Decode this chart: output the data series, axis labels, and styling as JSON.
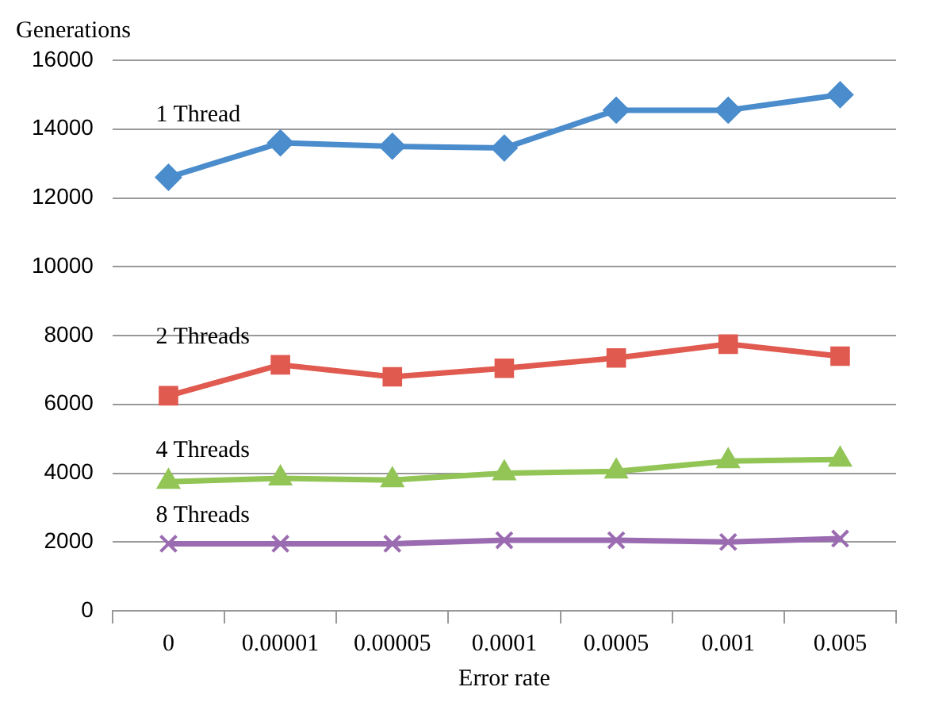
{
  "chart_data": {
    "type": "line",
    "xlabel": "Error rate",
    "ylabel": "Generations",
    "categories": [
      "0",
      "0.00001",
      "0.00005",
      "0.0001",
      "0.0005",
      "0.001",
      "0.005"
    ],
    "series": [
      {
        "name": "1 Thread",
        "color": "#4a8ccc",
        "marker": "diamond",
        "values": [
          12600,
          13600,
          13500,
          13450,
          14550,
          14550,
          15000
        ]
      },
      {
        "name": "2 Threads",
        "color": "#e05a50",
        "marker": "square",
        "values": [
          6250,
          7150,
          6800,
          7050,
          7350,
          7750,
          7400
        ]
      },
      {
        "name": "4 Threads",
        "color": "#92c556",
        "marker": "triangle",
        "values": [
          3750,
          3850,
          3800,
          4000,
          4050,
          4350,
          4400
        ]
      },
      {
        "name": "8 Threads",
        "color": "#9a6bb0",
        "marker": "cross",
        "values": [
          1950,
          1950,
          1950,
          2050,
          2050,
          2000,
          2100
        ]
      }
    ],
    "ylim": [
      0,
      16000
    ],
    "yticks": [
      0,
      2000,
      4000,
      6000,
      8000,
      10000,
      12000,
      14000,
      16000
    ],
    "grid": "y",
    "legend": false,
    "line_style": "solid"
  }
}
